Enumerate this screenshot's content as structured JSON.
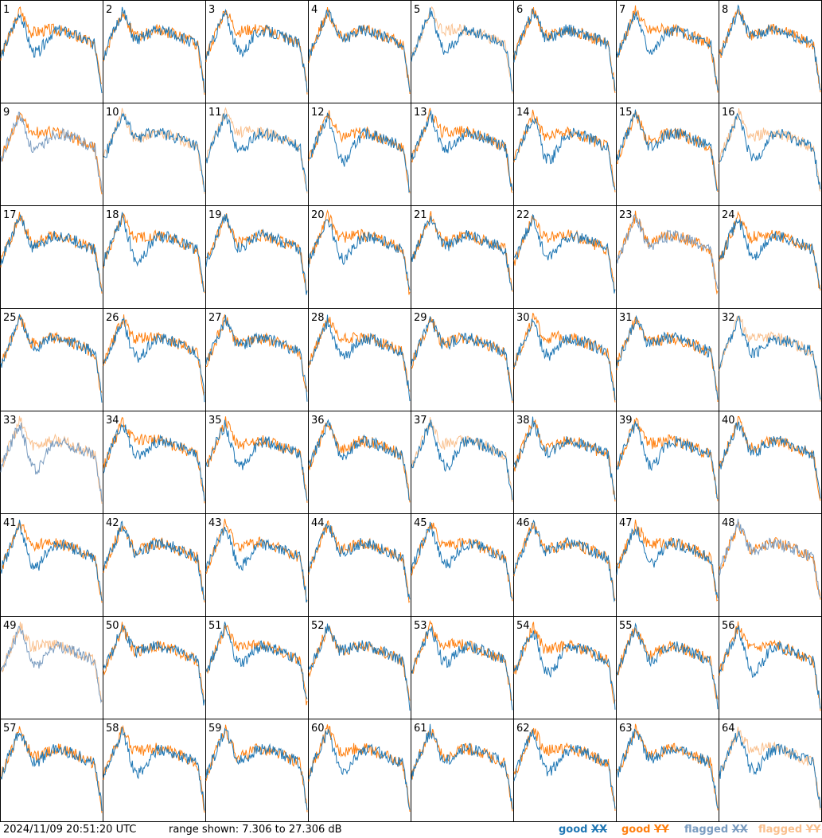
{
  "footer": {
    "timestamp": "2024/11/09 20:51:20 UTC",
    "range_text": "range shown: 7.306 to 27.306 dB"
  },
  "legend": [
    {
      "state": "good",
      "pol": "XX",
      "color": "#1f77b4"
    },
    {
      "state": "good",
      "pol": "YY",
      "color": "#ff7f0e"
    },
    {
      "state": "flagged",
      "pol": "XX",
      "color": "#7a9cc0"
    },
    {
      "state": "flagged",
      "pol": "YY",
      "color": "#f9c08e"
    }
  ],
  "chart_data": {
    "type": "line",
    "title": "",
    "units": "dB",
    "ylim": [
      7.306,
      27.306
    ],
    "grid_layout": "8x8 small multiples",
    "panels": [
      {
        "id": "1",
        "xx": "good",
        "yy": "good"
      },
      {
        "id": "2",
        "xx": "good",
        "yy": "good"
      },
      {
        "id": "3",
        "xx": "good",
        "yy": "good"
      },
      {
        "id": "4",
        "xx": "good",
        "yy": "good"
      },
      {
        "id": "5",
        "xx": "good",
        "yy": "flagged"
      },
      {
        "id": "6",
        "xx": "good",
        "yy": "good"
      },
      {
        "id": "7",
        "xx": "good",
        "yy": "good"
      },
      {
        "id": "8",
        "xx": "good",
        "yy": "good"
      },
      {
        "id": "9",
        "xx": "flagged",
        "yy": "good"
      },
      {
        "id": "10",
        "xx": "good",
        "yy": "flagged"
      },
      {
        "id": "11",
        "xx": "good",
        "yy": "flagged"
      },
      {
        "id": "12",
        "xx": "good",
        "yy": "good"
      },
      {
        "id": "13",
        "xx": "good",
        "yy": "good"
      },
      {
        "id": "14",
        "xx": "good",
        "yy": "good"
      },
      {
        "id": "15",
        "xx": "good",
        "yy": "good"
      },
      {
        "id": "16",
        "xx": "good",
        "yy": "flagged"
      },
      {
        "id": "17",
        "xx": "good",
        "yy": "good"
      },
      {
        "id": "18",
        "xx": "good",
        "yy": "good"
      },
      {
        "id": "19",
        "xx": "good",
        "yy": "good"
      },
      {
        "id": "20",
        "xx": "good",
        "yy": "good"
      },
      {
        "id": "21",
        "xx": "good",
        "yy": "good"
      },
      {
        "id": "22",
        "xx": "good",
        "yy": "good"
      },
      {
        "id": "23",
        "xx": "flagged",
        "yy": "good"
      },
      {
        "id": "24",
        "xx": "good",
        "yy": "good"
      },
      {
        "id": "25",
        "xx": "good",
        "yy": "good"
      },
      {
        "id": "26",
        "xx": "good",
        "yy": "good"
      },
      {
        "id": "27",
        "xx": "good",
        "yy": "good"
      },
      {
        "id": "28",
        "xx": "good",
        "yy": "good"
      },
      {
        "id": "29",
        "xx": "good",
        "yy": "good"
      },
      {
        "id": "30",
        "xx": "good",
        "yy": "good"
      },
      {
        "id": "31",
        "xx": "good",
        "yy": "good"
      },
      {
        "id": "32",
        "xx": "good",
        "yy": "flagged"
      },
      {
        "id": "33",
        "xx": "flagged",
        "yy": "flagged"
      },
      {
        "id": "34",
        "xx": "good",
        "yy": "good"
      },
      {
        "id": "35",
        "xx": "good",
        "yy": "good"
      },
      {
        "id": "36",
        "xx": "good",
        "yy": "good"
      },
      {
        "id": "37",
        "xx": "good",
        "yy": "flagged"
      },
      {
        "id": "38",
        "xx": "good",
        "yy": "good"
      },
      {
        "id": "39",
        "xx": "good",
        "yy": "good"
      },
      {
        "id": "40",
        "xx": "good",
        "yy": "good"
      },
      {
        "id": "41",
        "xx": "good",
        "yy": "good"
      },
      {
        "id": "42",
        "xx": "good",
        "yy": "good"
      },
      {
        "id": "43",
        "xx": "good",
        "yy": "good"
      },
      {
        "id": "44",
        "xx": "good",
        "yy": "good"
      },
      {
        "id": "45",
        "xx": "good",
        "yy": "good"
      },
      {
        "id": "46",
        "xx": "good",
        "yy": "good"
      },
      {
        "id": "47",
        "xx": "good",
        "yy": "good"
      },
      {
        "id": "48",
        "xx": "flagged",
        "yy": "good"
      },
      {
        "id": "49",
        "xx": "flagged",
        "yy": "flagged"
      },
      {
        "id": "50",
        "xx": "good",
        "yy": "good"
      },
      {
        "id": "51",
        "xx": "good",
        "yy": "good"
      },
      {
        "id": "52",
        "xx": "good",
        "yy": "good"
      },
      {
        "id": "53",
        "xx": "good",
        "yy": "good"
      },
      {
        "id": "54",
        "xx": "good",
        "yy": "good"
      },
      {
        "id": "55",
        "xx": "good",
        "yy": "good"
      },
      {
        "id": "56",
        "xx": "good",
        "yy": "good"
      },
      {
        "id": "57",
        "xx": "good",
        "yy": "good"
      },
      {
        "id": "58",
        "xx": "good",
        "yy": "good"
      },
      {
        "id": "59",
        "xx": "good",
        "yy": "good"
      },
      {
        "id": "60",
        "xx": "good",
        "yy": "good"
      },
      {
        "id": "61",
        "xx": "good",
        "yy": "good"
      },
      {
        "id": "62",
        "xx": "good",
        "yy": "good"
      },
      {
        "id": "63",
        "xx": "good",
        "yy": "good"
      },
      {
        "id": "64",
        "xx": "good",
        "yy": "flagged"
      }
    ]
  }
}
